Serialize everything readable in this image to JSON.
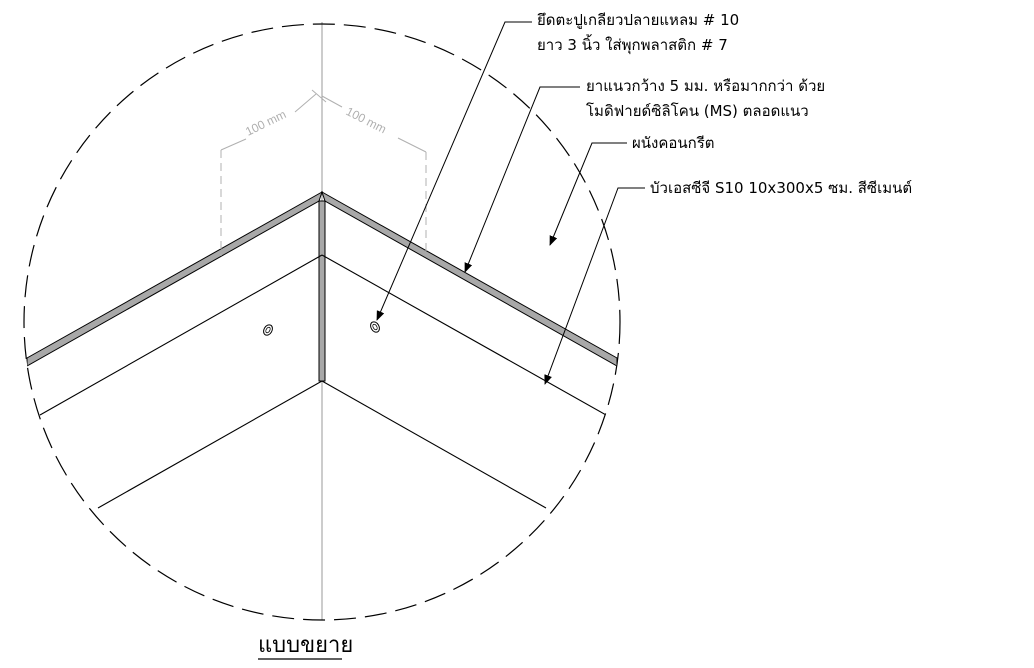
{
  "title": "แบบขยาย",
  "dimensions": {
    "left": "100 mm",
    "right": "100 mm"
  },
  "callouts": {
    "screw_line1": "ยึดตะปูเกลียวปลายแหลม # 10",
    "screw_line2": "ยาว 3 นิ้ว ใส่พุกพลาสติก # 7",
    "sealant_line1": "ยาแนวกว้าง 5 มม. หรือมากกว่า ด้วย",
    "sealant_line2": "โมดิฟายด์ซิลิโคน (MS) ตลอดแนว",
    "wall": "ผนังคอนกรีต",
    "board": "บัวเอสซีจี  S10 10x300x5 ซม. สีซีเมนต์"
  },
  "colors": {
    "line": "#000000",
    "dimension": "#b0b0b0",
    "sealant_fill": "#a8a8a8"
  }
}
